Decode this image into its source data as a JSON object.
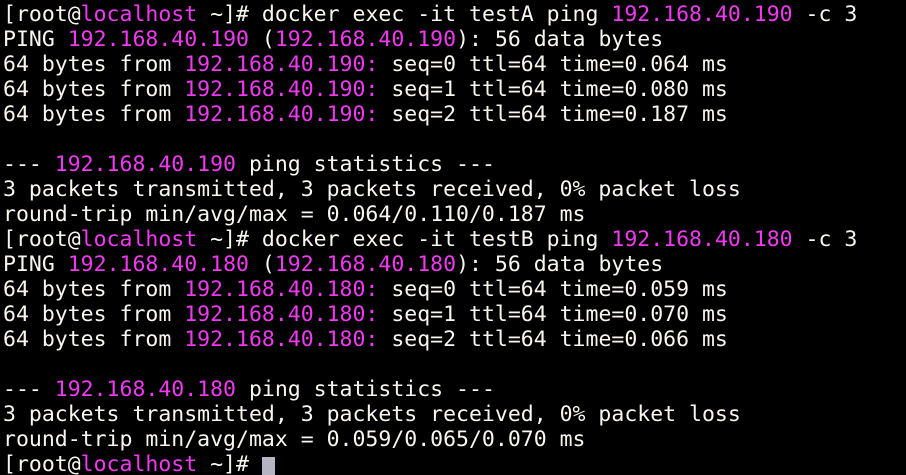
{
  "terminal": {
    "colors": {
      "background": "#000000",
      "fg": "#F8F6EE",
      "magenta": "#F239F2",
      "cursor": "#B4B4C2"
    },
    "prompt": "[root@localhost ~]#",
    "lines": [
      {
        "segments": [
          {
            "c": "fg",
            "t": "[root@"
          },
          {
            "c": "magenta",
            "t": "localhost"
          },
          {
            "c": "fg",
            "t": " ~]# docker exec -it testA ping "
          },
          {
            "c": "magenta",
            "t": "192.168.40.190"
          },
          {
            "c": "fg",
            "t": " -c 3"
          }
        ]
      },
      {
        "segments": [
          {
            "c": "fg",
            "t": "PING "
          },
          {
            "c": "magenta",
            "t": "192.168.40.190"
          },
          {
            "c": "fg",
            "t": " ("
          },
          {
            "c": "magenta",
            "t": "192.168.40.190"
          },
          {
            "c": "fg",
            "t": "): 56 data bytes"
          }
        ]
      },
      {
        "segments": [
          {
            "c": "fg",
            "t": "64 bytes from "
          },
          {
            "c": "magenta",
            "t": "192.168.40.190:"
          },
          {
            "c": "fg",
            "t": " seq=0 ttl=64 time=0.064 ms"
          }
        ]
      },
      {
        "segments": [
          {
            "c": "fg",
            "t": "64 bytes from "
          },
          {
            "c": "magenta",
            "t": "192.168.40.190:"
          },
          {
            "c": "fg",
            "t": " seq=1 ttl=64 time=0.080 ms"
          }
        ]
      },
      {
        "segments": [
          {
            "c": "fg",
            "t": "64 bytes from "
          },
          {
            "c": "magenta",
            "t": "192.168.40.190:"
          },
          {
            "c": "fg",
            "t": " seq=2 ttl=64 time=0.187 ms"
          }
        ]
      },
      {
        "segments": []
      },
      {
        "segments": [
          {
            "c": "fg",
            "t": "--- "
          },
          {
            "c": "magenta",
            "t": "192.168.40.190"
          },
          {
            "c": "fg",
            "t": " ping statistics ---"
          }
        ]
      },
      {
        "segments": [
          {
            "c": "fg",
            "t": "3 packets transmitted, 3 packets received, 0% packet loss"
          }
        ]
      },
      {
        "segments": [
          {
            "c": "fg",
            "t": "round-trip min/avg/max = 0.064/0.110/0.187 ms"
          }
        ]
      },
      {
        "segments": [
          {
            "c": "fg",
            "t": "[root@"
          },
          {
            "c": "magenta",
            "t": "localhost"
          },
          {
            "c": "fg",
            "t": " ~]# docker exec -it testB ping "
          },
          {
            "c": "magenta",
            "t": "192.168.40.180"
          },
          {
            "c": "fg",
            "t": " -c 3"
          }
        ]
      },
      {
        "segments": [
          {
            "c": "fg",
            "t": "PING "
          },
          {
            "c": "magenta",
            "t": "192.168.40.180"
          },
          {
            "c": "fg",
            "t": " ("
          },
          {
            "c": "magenta",
            "t": "192.168.40.180"
          },
          {
            "c": "fg",
            "t": "): 56 data bytes"
          }
        ]
      },
      {
        "segments": [
          {
            "c": "fg",
            "t": "64 bytes from "
          },
          {
            "c": "magenta",
            "t": "192.168.40.180:"
          },
          {
            "c": "fg",
            "t": " seq=0 ttl=64 time=0.059 ms"
          }
        ]
      },
      {
        "segments": [
          {
            "c": "fg",
            "t": "64 bytes from "
          },
          {
            "c": "magenta",
            "t": "192.168.40.180:"
          },
          {
            "c": "fg",
            "t": " seq=1 ttl=64 time=0.070 ms"
          }
        ]
      },
      {
        "segments": [
          {
            "c": "fg",
            "t": "64 bytes from "
          },
          {
            "c": "magenta",
            "t": "192.168.40.180:"
          },
          {
            "c": "fg",
            "t": " seq=2 ttl=64 time=0.066 ms"
          }
        ]
      },
      {
        "segments": []
      },
      {
        "segments": [
          {
            "c": "fg",
            "t": "--- "
          },
          {
            "c": "magenta",
            "t": "192.168.40.180"
          },
          {
            "c": "fg",
            "t": " ping statistics ---"
          }
        ]
      },
      {
        "segments": [
          {
            "c": "fg",
            "t": "3 packets transmitted, 3 packets received, 0% packet loss"
          }
        ]
      },
      {
        "segments": [
          {
            "c": "fg",
            "t": "round-trip min/avg/max = 0.059/0.065/0.070 ms"
          }
        ]
      },
      {
        "segments": [
          {
            "c": "fg",
            "t": "[root@"
          },
          {
            "c": "magenta",
            "t": "localhost"
          },
          {
            "c": "fg",
            "t": " ~]# "
          }
        ],
        "cursor": true
      }
    ]
  }
}
